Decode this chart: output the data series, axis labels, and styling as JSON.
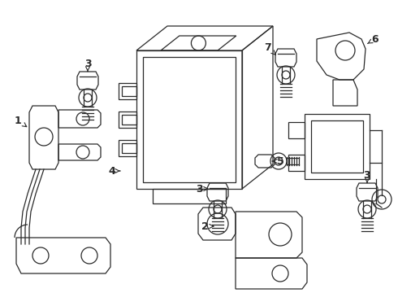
{
  "bg_color": "#ffffff",
  "line_color": "#2a2a2a",
  "fig_width": 4.9,
  "fig_height": 3.6,
  "dpi": 100,
  "lw": 0.9
}
